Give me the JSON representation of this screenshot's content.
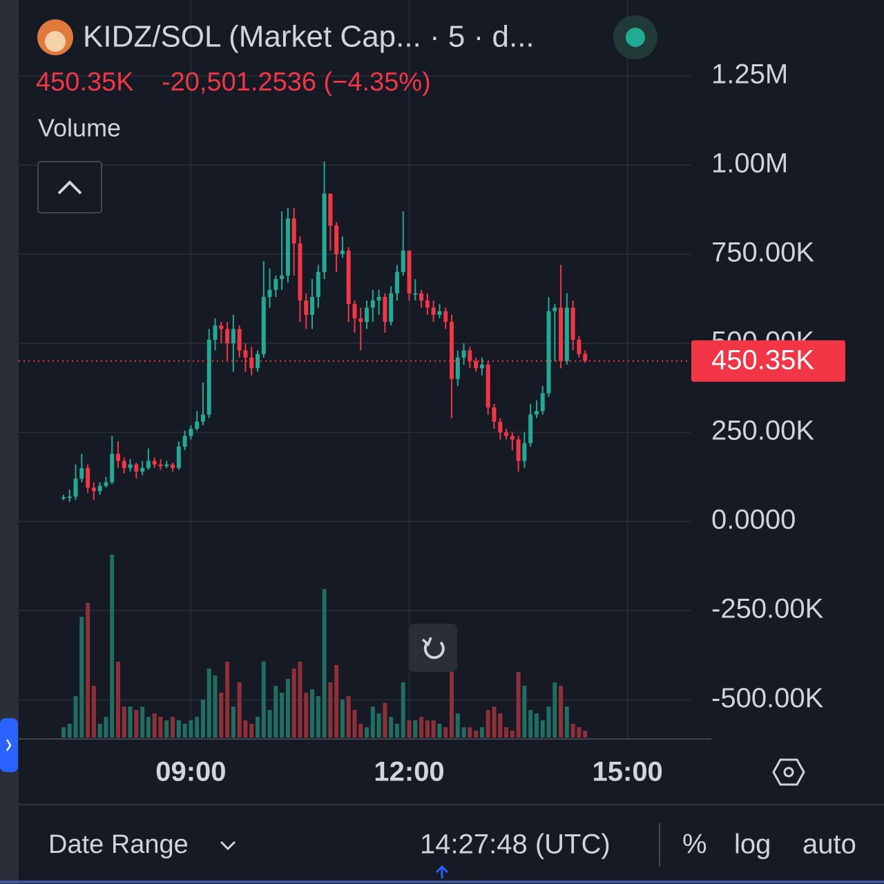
{
  "header": {
    "title": "KIDZ/SOL (Market Cap... · 5 · d...",
    "change": "-20,501.2536 (−4.35%)",
    "volume_label": "Volume"
  },
  "chart_data": {
    "type": "candlestick",
    "x": [
      "07:15",
      "07:20",
      "07:25",
      "07:30",
      "07:35",
      "07:40",
      "07:45",
      "07:50",
      "07:55",
      "08:00",
      "08:05",
      "08:10",
      "08:15",
      "08:20",
      "08:25",
      "08:30",
      "08:35",
      "08:40",
      "08:45",
      "08:50",
      "08:55",
      "09:00",
      "09:05",
      "09:10",
      "09:15",
      "09:20",
      "09:25",
      "09:30",
      "09:35",
      "09:40",
      "09:45",
      "09:50",
      "09:55",
      "10:00",
      "10:05",
      "10:10",
      "10:15",
      "10:20",
      "10:25",
      "10:30",
      "10:35",
      "10:40",
      "10:45",
      "10:50",
      "10:55",
      "11:00",
      "11:05",
      "11:10",
      "11:15",
      "11:20",
      "11:25",
      "11:30",
      "11:35",
      "11:40",
      "11:45",
      "11:50",
      "11:55",
      "12:00",
      "12:05",
      "12:10",
      "12:15",
      "12:20",
      "12:25",
      "12:30",
      "12:35",
      "12:40",
      "12:45",
      "12:50",
      "12:55",
      "13:00",
      "13:05",
      "13:10",
      "13:15",
      "13:20",
      "13:25",
      "13:30",
      "13:35",
      "13:40",
      "13:45",
      "13:50",
      "13:55",
      "14:00",
      "14:05",
      "14:10",
      "14:15",
      "14:20",
      "14:25"
    ],
    "open": [
      65000,
      68000,
      70000,
      120000,
      150000,
      95000,
      85000,
      100000,
      110000,
      190000,
      170000,
      150000,
      160000,
      140000,
      150000,
      170000,
      160000,
      155000,
      160000,
      150000,
      210000,
      240000,
      260000,
      280000,
      300000,
      510000,
      550000,
      540000,
      500000,
      540000,
      480000,
      460000,
      430000,
      470000,
      630000,
      650000,
      680000,
      690000,
      850000,
      780000,
      620000,
      580000,
      630000,
      700000,
      920000,
      830000,
      750000,
      760000,
      610000,
      570000,
      560000,
      600000,
      620000,
      630000,
      560000,
      640000,
      700000,
      760000,
      640000,
      640000,
      620000,
      600000,
      580000,
      590000,
      560000,
      400000,
      460000,
      480000,
      450000,
      430000,
      440000,
      320000,
      280000,
      250000,
      240000,
      230000,
      170000,
      220000,
      300000,
      310000,
      360000,
      590000,
      600000,
      450000,
      600000,
      510000,
      470000
    ],
    "high": [
      75000,
      90000,
      160000,
      190000,
      160000,
      110000,
      110000,
      125000,
      240000,
      225000,
      180000,
      175000,
      165000,
      170000,
      205000,
      180000,
      175000,
      170000,
      165000,
      225000,
      255000,
      270000,
      310000,
      390000,
      540000,
      570000,
      560000,
      560000,
      580000,
      550000,
      500000,
      490000,
      480000,
      730000,
      710000,
      690000,
      870000,
      880000,
      880000,
      800000,
      640000,
      680000,
      720000,
      1010000,
      920000,
      840000,
      800000,
      770000,
      620000,
      600000,
      620000,
      650000,
      650000,
      640000,
      660000,
      720000,
      870000,
      760000,
      680000,
      650000,
      640000,
      620000,
      610000,
      600000,
      580000,
      480000,
      500000,
      490000,
      460000,
      460000,
      450000,
      330000,
      290000,
      260000,
      250000,
      240000,
      250000,
      330000,
      340000,
      380000,
      630000,
      610000,
      720000,
      640000,
      620000,
      520000,
      480000
    ],
    "low": [
      60000,
      55000,
      60000,
      110000,
      80000,
      60000,
      75000,
      95000,
      105000,
      150000,
      135000,
      140000,
      120000,
      130000,
      145000,
      150000,
      145000,
      150000,
      140000,
      145000,
      200000,
      230000,
      255000,
      270000,
      290000,
      480000,
      500000,
      450000,
      420000,
      460000,
      420000,
      410000,
      420000,
      460000,
      600000,
      630000,
      650000,
      670000,
      690000,
      560000,
      540000,
      540000,
      600000,
      680000,
      760000,
      700000,
      740000,
      560000,
      530000,
      480000,
      540000,
      560000,
      580000,
      530000,
      550000,
      620000,
      690000,
      620000,
      620000,
      600000,
      580000,
      560000,
      570000,
      540000,
      290000,
      380000,
      440000,
      430000,
      420000,
      410000,
      300000,
      260000,
      230000,
      230000,
      200000,
      140000,
      150000,
      210000,
      290000,
      300000,
      350000,
      450000,
      430000,
      440000,
      480000,
      460000,
      445000
    ],
    "close": [
      68000,
      70000,
      120000,
      150000,
      95000,
      85000,
      100000,
      110000,
      190000,
      170000,
      150000,
      160000,
      140000,
      150000,
      170000,
      160000,
      155000,
      160000,
      150000,
      210000,
      240000,
      260000,
      280000,
      300000,
      510000,
      550000,
      540000,
      500000,
      540000,
      480000,
      460000,
      430000,
      470000,
      630000,
      650000,
      680000,
      690000,
      850000,
      780000,
      620000,
      580000,
      630000,
      700000,
      920000,
      830000,
      750000,
      760000,
      610000,
      570000,
      560000,
      600000,
      620000,
      630000,
      560000,
      640000,
      700000,
      760000,
      640000,
      640000,
      620000,
      600000,
      580000,
      590000,
      560000,
      400000,
      460000,
      480000,
      450000,
      430000,
      440000,
      320000,
      280000,
      250000,
      240000,
      230000,
      170000,
      220000,
      300000,
      310000,
      360000,
      590000,
      600000,
      450000,
      600000,
      510000,
      470000,
      450350
    ],
    "volume": [
      15,
      20,
      60,
      175,
      195,
      75,
      20,
      30,
      265,
      110,
      45,
      45,
      40,
      45,
      30,
      35,
      30,
      25,
      30,
      25,
      20,
      25,
      30,
      55,
      100,
      90,
      65,
      110,
      45,
      80,
      25,
      20,
      30,
      110,
      40,
      75,
      65,
      85,
      100,
      110,
      65,
      70,
      60,
      215,
      80,
      105,
      55,
      60,
      40,
      20,
      15,
      45,
      35,
      50,
      30,
      20,
      80,
      25,
      25,
      30,
      25,
      25,
      20,
      15,
      95,
      35,
      15,
      15,
      10,
      15,
      40,
      45,
      35,
      15,
      10,
      95,
      75,
      40,
      35,
      25,
      45,
      80,
      75,
      45,
      20,
      15,
      10
    ],
    "up_color": "#22ab94",
    "down_color": "#f23645",
    "last_price": {
      "value": 450350,
      "label": "450.35K"
    },
    "xlim": [
      "06:38",
      "15:52"
    ],
    "xticks": [
      "09:00",
      "12:00",
      "15:00"
    ],
    "ylim": [
      -610000,
      1463000
    ],
    "yticks": [
      {
        "value": 1250000,
        "label": "1.25M"
      },
      {
        "value": 1000000,
        "label": "1.00M"
      },
      {
        "value": 750000,
        "label": "750.00K"
      },
      {
        "value": 500000,
        "label": "500.00K"
      },
      {
        "value": 250000,
        "label": "250.00K"
      },
      {
        "value": 0,
        "label": "0.0000"
      },
      {
        "value": -250000,
        "label": "-250.00K"
      },
      {
        "value": -500000,
        "label": "-500.00K"
      }
    ],
    "grid": true
  },
  "footer": {
    "date_range": "Date Range",
    "clock": "14:27:48 (UTC)",
    "percent": "%",
    "log": "log",
    "auto": "auto"
  }
}
